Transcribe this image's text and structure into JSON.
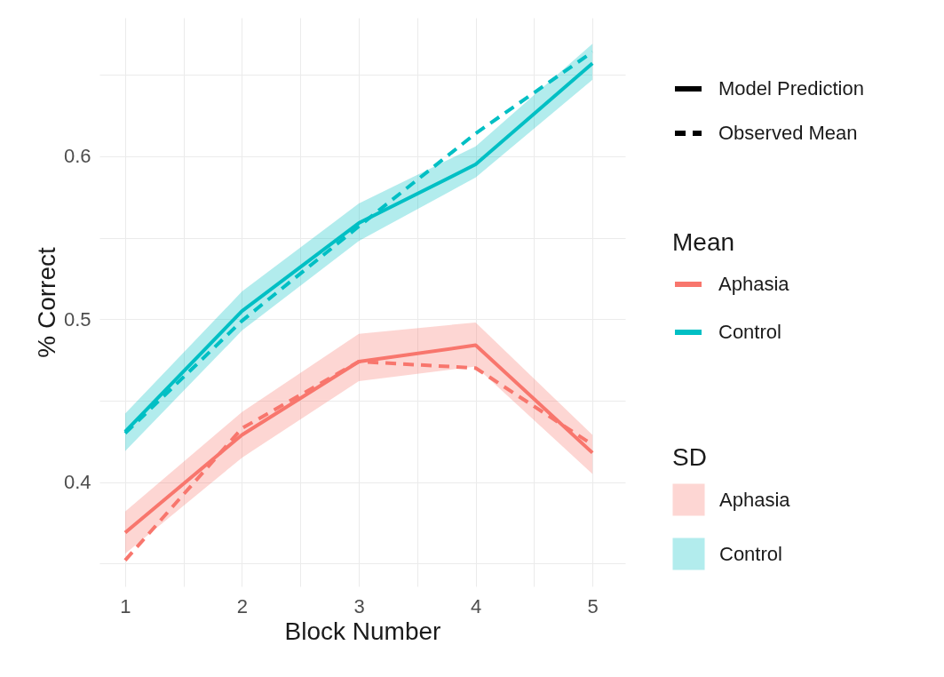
{
  "chart_data": {
    "type": "line",
    "xlabel": "Block Number",
    "ylabel": "% Correct",
    "legend_title": "Mean",
    "legend": "right",
    "grid": true,
    "annotations": [
      "Model Prediction",
      "Observed Mean",
      "SD"
    ],
    "x": [
      1,
      2,
      3,
      4,
      5
    ],
    "xlim": [
      0.78,
      5.28
    ],
    "xticks": [
      1,
      {
        "value": 1.5,
        "label": null
      },
      2,
      {
        "value": 2.5,
        "label": null
      },
      3,
      {
        "value": 3.5,
        "label": null
      },
      4,
      {
        "value": 4.5,
        "label": null
      },
      5
    ],
    "ylim": [
      0.336,
      0.685
    ],
    "yticks": [
      {
        "value": 0.35,
        "label": null
      },
      0.4,
      {
        "value": 0.45,
        "label": null
      },
      0.5,
      {
        "value": 0.55,
        "label": null
      },
      0.6,
      {
        "value": 0.65,
        "label": null
      }
    ],
    "series": [
      {
        "name": "Aphasia",
        "color": "#f8766d",
        "line_style": "solid",
        "values": [
          0.369,
          0.429,
          0.474,
          0.484,
          0.418
        ],
        "lower": [
          0.356,
          0.415,
          0.462,
          0.471,
          0.405
        ],
        "upper": [
          0.382,
          0.443,
          0.491,
          0.498,
          0.429
        ]
      },
      {
        "name": "Control",
        "color": "#00bfc4",
        "line_style": "solid",
        "values": [
          0.431,
          0.505,
          0.559,
          0.595,
          0.657
        ],
        "lower": [
          0.419,
          0.493,
          0.548,
          0.587,
          0.647
        ],
        "upper": [
          0.442,
          0.517,
          0.571,
          0.606,
          0.669
        ]
      },
      {
        "color": "#f8766d",
        "line_style": "dashed",
        "values": [
          0.352,
          0.433,
          0.474,
          0.47,
          0.423
        ]
      },
      {
        "color": "#00bfc4",
        "line_style": "dashed",
        "values": [
          0.43,
          0.499,
          0.557,
          0.614,
          0.664
        ]
      }
    ]
  }
}
